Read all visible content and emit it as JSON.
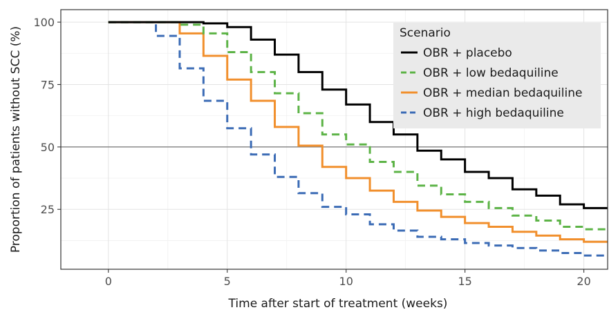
{
  "chart_data": {
    "type": "line",
    "step": true,
    "xlabel": "Time after start of treatment (weeks)",
    "ylabel": "Proportion of patients without SCC (%)",
    "xlim": [
      -2,
      21
    ],
    "ylim": [
      1,
      105
    ],
    "xticks": [
      0,
      5,
      10,
      15,
      20
    ],
    "yticks": [
      25,
      50,
      75,
      100
    ],
    "reference_line_y": 50,
    "grid": true,
    "legend": {
      "title": "Scenario",
      "position": "top-right"
    },
    "series": [
      {
        "name": "OBR + placebo",
        "color": "#000000",
        "dash": "solid",
        "x": [
          0,
          4,
          5,
          6,
          7,
          8,
          9,
          10,
          11,
          12,
          13,
          14,
          15,
          16,
          17,
          18,
          19,
          20,
          21
        ],
        "y": [
          100,
          99.5,
          98,
          93,
          87,
          80,
          73,
          67,
          60,
          55,
          48.5,
          45,
          40,
          37.5,
          33,
          30.5,
          27,
          25.5,
          25.5
        ]
      },
      {
        "name": "OBR + low bedaquiline",
        "color": "#5cb346",
        "dash": "dashed",
        "x": [
          0,
          3,
          4,
          5,
          6,
          7,
          8,
          9,
          10,
          11,
          12,
          13,
          14,
          15,
          16,
          17,
          18,
          19,
          20,
          21
        ],
        "y": [
          100,
          99,
          95.5,
          88,
          80,
          71.5,
          63.5,
          55,
          51,
          44,
          40,
          34.5,
          31,
          28,
          25.5,
          22.5,
          20.5,
          18,
          17,
          17
        ]
      },
      {
        "name": "OBR + median bedaquiline",
        "color": "#f18f2c",
        "dash": "solid",
        "x": [
          0,
          3,
          4,
          5,
          6,
          7,
          8,
          9,
          10,
          11,
          12,
          13,
          14,
          15,
          16,
          17,
          18,
          19,
          20,
          21
        ],
        "y": [
          100,
          95.5,
          86.5,
          77,
          68.5,
          58,
          50.5,
          42,
          37.5,
          32.5,
          28,
          24.5,
          22,
          19.5,
          18,
          16,
          14.5,
          13,
          12,
          12
        ]
      },
      {
        "name": "OBR + high bedaquiline",
        "color": "#3b6bb5",
        "dash": "dashed",
        "x": [
          0,
          2,
          3,
          4,
          5,
          6,
          7,
          8,
          9,
          10,
          11,
          12,
          13,
          14,
          15,
          16,
          17,
          18,
          19,
          20,
          21
        ],
        "y": [
          100,
          94.5,
          81.5,
          68.5,
          57.5,
          47,
          38,
          31.5,
          26,
          23,
          19,
          16.5,
          14,
          13,
          11.5,
          10.5,
          9.5,
          8.5,
          7.5,
          6.5,
          6.5
        ]
      }
    ]
  }
}
